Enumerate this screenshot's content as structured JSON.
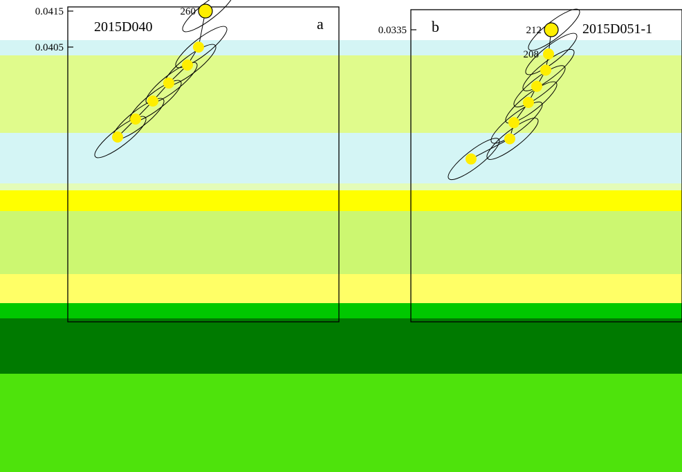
{
  "bands": [
    {
      "color": "#d4f5f5"
    },
    {
      "color": "#e0fb8c"
    },
    {
      "color": "#d4f5f5"
    },
    {
      "color": "#e4fcb8"
    },
    {
      "color": "#ffff00"
    },
    {
      "color": "#ccf771"
    },
    {
      "color": "#ffff66"
    },
    {
      "color": "#00c800"
    },
    {
      "color": "#007a00"
    },
    {
      "color": "#4ee30c"
    }
  ],
  "chart_data": [
    {
      "type": "scatter",
      "panel_label": "a",
      "sample": "2015D040",
      "ytick_labels": [
        "0.0415",
        "0.0405"
      ],
      "y_ticks": [
        0.0415,
        0.0405
      ],
      "point_labels": [
        {
          "label": "260",
          "y": 0.0415
        }
      ],
      "points_y": [
        0.0415,
        0.0405,
        0.04,
        0.0395,
        0.039,
        0.0385,
        0.038
      ],
      "point_color": "#ffee00"
    },
    {
      "type": "scatter",
      "panel_label": "b",
      "sample": "2015D051-1",
      "ytick_labels": [
        "0.0335"
      ],
      "y_ticks": [
        0.0335
      ],
      "point_labels": [
        {
          "label": "212",
          "y": 0.0335
        },
        {
          "label": "208",
          "y": 0.0329
        }
      ],
      "points_y": [
        0.0335,
        0.0329,
        0.0325,
        0.0321,
        0.0317,
        0.0312,
        0.0308,
        0.0303
      ],
      "point_color": "#ffee00"
    }
  ]
}
